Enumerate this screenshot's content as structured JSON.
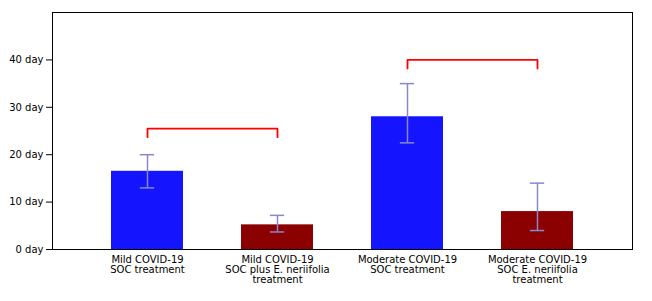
{
  "chart_data": {
    "type": "bar",
    "categories": [
      "Mild COVID-19\nSOC treatment",
      "Mild COVID-19\nSOC plus E. neriifolia\ntreatment",
      "Moderate COVID-19\nSOC treatment",
      "Moderate COVID-19\nSOC E. neriifolia\ntreatment"
    ],
    "values": [
      16.5,
      5.2,
      28.0,
      8.0
    ],
    "colors": [
      "#1414ff",
      "#8b0000",
      "#1414ff",
      "#8b0000"
    ],
    "error_bars": {
      "upper": [
        3.5,
        2.0,
        7.0,
        6.0
      ],
      "lower": [
        3.5,
        1.5,
        5.5,
        4.0
      ],
      "color": "#8888cc"
    },
    "brackets": [
      {
        "from": "Mild COVID-19\nSOC treatment",
        "to": "Mild COVID-19\nSOC plus E. neriifolia\ntreatment",
        "y": 25.5,
        "drop": 1.8,
        "color": "#ff0000"
      },
      {
        "from": "Moderate COVID-19\nSOC treatment",
        "to": "Moderate COVID-19\nSOC E. neriifolia\ntreatment",
        "y": 40.0,
        "drop": 1.8,
        "color": "#ff0000"
      }
    ],
    "ylim": [
      0,
      50
    ],
    "yticks": [
      {
        "value": 0,
        "label": "0 day"
      },
      {
        "value": 10,
        "label": "10 day"
      },
      {
        "value": 20,
        "label": "20 day"
      },
      {
        "value": 30,
        "label": "30 day"
      },
      {
        "value": 40,
        "label": "40 day"
      }
    ],
    "grid": false
  }
}
